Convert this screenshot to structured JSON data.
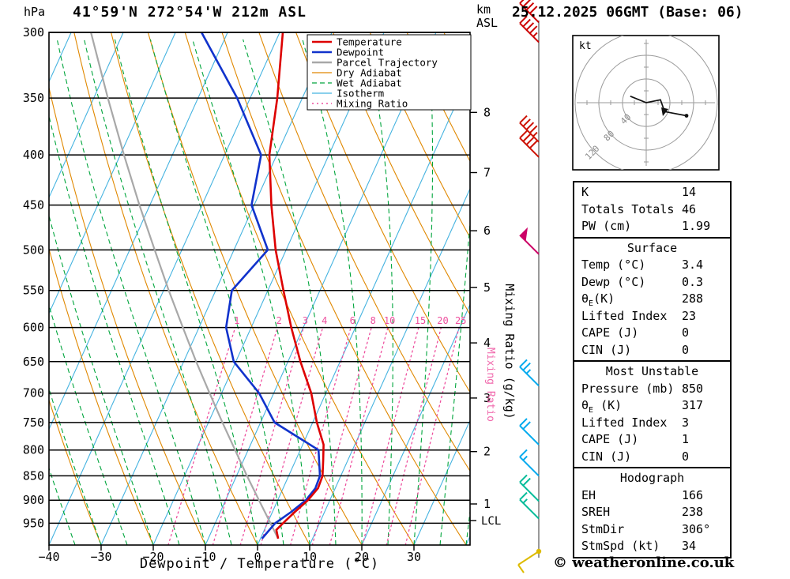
{
  "header": {
    "pressure_unit": "hPa",
    "station_title": "41°59'N 272°54'W 212m ASL",
    "altitude_unit_km": "km",
    "altitude_unit_asl": "ASL",
    "date_title": "25.12.2025 06GMT (Base: 06)"
  },
  "chart_data": {
    "type": "skewt-log-p",
    "xlabel": "Dewpoint / Temperature (°C)",
    "x_ticks": [
      -40,
      -30,
      -20,
      -10,
      0,
      10,
      20,
      30
    ],
    "temp_range": [
      -40,
      40
    ],
    "pressure_range": [
      300,
      1000
    ],
    "pressure_ticks": [
      300,
      350,
      400,
      450,
      500,
      550,
      600,
      650,
      700,
      750,
      800,
      850,
      900,
      950
    ],
    "km_ticks": [
      8,
      7,
      6,
      5,
      4,
      3,
      2,
      1
    ],
    "lcl_label": "LCL",
    "mixing_ratio_values": [
      1,
      2,
      3,
      4,
      6,
      8,
      10,
      15,
      20,
      25
    ],
    "mixing_ratio_axis_label": "Mixing Ratio (g/kg)",
    "mixing_ratio_side_label": "Mixing Ratio",
    "colors": {
      "temperature": "#dd0000",
      "dewpoint": "#1133cc",
      "parcel": "#a8a8a8",
      "dry_adiabat": "#e08800",
      "wet_adiabat": "#00a53c",
      "isotherm": "#45b3e0",
      "mixing_ratio": "#ee4f9e",
      "axis": "#000000"
    },
    "legend": [
      {
        "label": "Temperature",
        "color": "#dd0000",
        "dash": "",
        "width": 2.6
      },
      {
        "label": "Dewpoint",
        "color": "#1133cc",
        "dash": "",
        "width": 2.6
      },
      {
        "label": "Parcel Trajectory",
        "color": "#a8a8a8",
        "dash": "",
        "width": 2.6
      },
      {
        "label": "Dry Adiabat",
        "color": "#e08800",
        "dash": "",
        "width": 1.2
      },
      {
        "label": "Wet Adiabat",
        "color": "#00a53c",
        "dash": "6,4",
        "width": 1.2
      },
      {
        "label": "Isotherm",
        "color": "#45b3e0",
        "dash": "",
        "width": 1.2
      },
      {
        "label": "Mixing Ratio",
        "color": "#ee4f9e",
        "dash": "2,4",
        "width": 1.4
      }
    ],
    "series": {
      "temperature": {
        "name": "Temperature",
        "points": [
          [
            300,
            -39.4
          ],
          [
            350,
            -34.8
          ],
          [
            400,
            -31.4
          ],
          [
            450,
            -26.7
          ],
          [
            500,
            -22.0
          ],
          [
            550,
            -17.0
          ],
          [
            600,
            -12.3
          ],
          [
            650,
            -7.6
          ],
          [
            700,
            -2.8
          ],
          [
            750,
            0.8
          ],
          [
            790,
            4.0
          ],
          [
            820,
            5.3
          ],
          [
            850,
            6.5
          ],
          [
            875,
            6.7
          ],
          [
            900,
            5.8
          ],
          [
            925,
            4.3
          ],
          [
            950,
            3.0
          ],
          [
            965,
            2.3
          ],
          [
            985,
            3.4
          ]
        ]
      },
      "dewpoint": {
        "name": "Dewpoint",
        "points": [
          [
            300,
            -55.0
          ],
          [
            350,
            -42.5
          ],
          [
            400,
            -33.0
          ],
          [
            450,
            -30.5
          ],
          [
            500,
            -23.5
          ],
          [
            550,
            -26.9
          ],
          [
            600,
            -24.8
          ],
          [
            650,
            -20.4
          ],
          [
            700,
            -12.8
          ],
          [
            750,
            -7.3
          ],
          [
            800,
            3.5
          ],
          [
            850,
            6.0
          ],
          [
            875,
            6.2
          ],
          [
            900,
            5.4
          ],
          [
            925,
            3.6
          ],
          [
            950,
            1.5
          ],
          [
            985,
            0.3
          ]
        ]
      },
      "parcel": {
        "name": "Parcel Trajectory",
        "points": [
          [
            300,
            -76.2
          ],
          [
            350,
            -67.3
          ],
          [
            400,
            -59.3
          ],
          [
            450,
            -52.0
          ],
          [
            500,
            -45.2
          ],
          [
            550,
            -39.0
          ],
          [
            600,
            -33.1
          ],
          [
            650,
            -27.6
          ],
          [
            700,
            -22.3
          ],
          [
            750,
            -17.3
          ],
          [
            800,
            -12.5
          ],
          [
            850,
            -8.0
          ],
          [
            900,
            -3.6
          ],
          [
            950,
            0.6
          ],
          [
            985,
            3.4
          ]
        ]
      }
    },
    "winds": [
      {
        "p": 293,
        "speed": 40,
        "color": "#cc0000"
      },
      {
        "p": 307,
        "speed": 45,
        "color": "#cc0000"
      },
      {
        "p": 388,
        "speed": 45,
        "color": "#cc1100"
      },
      {
        "p": 402,
        "speed": 40,
        "color": "#cc1100"
      },
      {
        "p": 505,
        "speed": 50,
        "color": "#cc0066"
      },
      {
        "p": 688,
        "speed": 25,
        "color": "#00aaee"
      },
      {
        "p": 790,
        "speed": 20,
        "color": "#00aaee"
      },
      {
        "p": 850,
        "speed": 15,
        "color": "#00aaee"
      },
      {
        "p": 902,
        "speed": 20,
        "color": "#00bb99"
      },
      {
        "p": 940,
        "speed": 15,
        "color": "#00bb99"
      },
      {
        "p": 995,
        "y": 698,
        "speed": 10,
        "color": "#ddbb00",
        "dir": "down"
      }
    ]
  },
  "hodograph": {
    "unit": "kt",
    "ring_labels": [
      "40",
      "80",
      "120"
    ],
    "rings_kt": [
      40,
      80,
      120
    ],
    "trace_kt": [
      [
        -27,
        -11
      ],
      [
        0,
        0
      ],
      [
        24,
        -5
      ],
      [
        31,
        15
      ],
      [
        68,
        22
      ]
    ]
  },
  "stats": {
    "sections": [
      {
        "title": null,
        "rows": [
          [
            "K",
            "14"
          ],
          [
            "Totals Totals",
            "46"
          ],
          [
            "PW (cm)",
            "1.99"
          ]
        ]
      },
      {
        "title": "Surface",
        "rows": [
          [
            "Temp (°C)",
            "3.4"
          ],
          [
            "Dewp (°C)",
            "0.3"
          ],
          [
            "θE(K)",
            "288"
          ],
          [
            "Lifted Index",
            "23"
          ],
          [
            "CAPE (J)",
            "0"
          ],
          [
            "CIN (J)",
            "0"
          ]
        ]
      },
      {
        "title": "Most Unstable",
        "rows": [
          [
            "Pressure (mb)",
            "850"
          ],
          [
            "θE (K)",
            "317"
          ],
          [
            "Lifted Index",
            "3"
          ],
          [
            "CAPE (J)",
            "1"
          ],
          [
            "CIN (J)",
            "0"
          ]
        ]
      },
      {
        "title": "Hodograph",
        "rows": [
          [
            "EH",
            "166"
          ],
          [
            "SREH",
            "238"
          ],
          [
            "StmDir",
            "306°"
          ],
          [
            "StmSpd (kt)",
            "34"
          ]
        ]
      }
    ]
  },
  "footer": {
    "copyright": "© weatheronline.co.uk"
  }
}
